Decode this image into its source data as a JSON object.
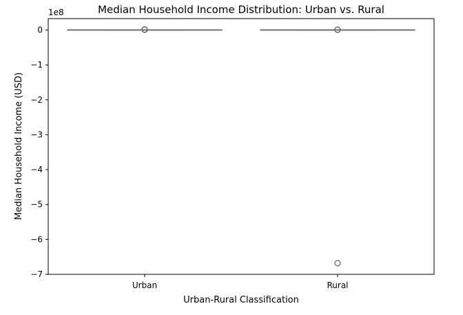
{
  "chart_data": {
    "type": "box",
    "title": "Median Household Income Distribution: Urban vs. Rural",
    "xlabel": "Urban-Rural Classification",
    "ylabel": "Median Household Income (USD)",
    "y_offset_label": "1e8",
    "ylim": [
      -7,
      0.3
    ],
    "y_unit_scale": 100000000,
    "y_ticks": [
      0,
      -1,
      -2,
      -3,
      -4,
      -5,
      -6,
      -7
    ],
    "y_tick_labels": [
      "0",
      "−1",
      "−2",
      "−3",
      "−4",
      "−5",
      "−6",
      "−7"
    ],
    "categories": [
      "Urban",
      "Rural"
    ],
    "series": [
      {
        "category": "Urban",
        "q1": 0.0,
        "median": 0.0,
        "q3": 0.0,
        "whisker_low": 0.0,
        "whisker_high": 0.0,
        "outliers": [
          0.005,
          0.01,
          0.015
        ]
      },
      {
        "category": "Rural",
        "q1": 0.0,
        "median": 0.0,
        "q3": 0.0,
        "whisker_low": 0.0,
        "whisker_high": 0.0,
        "outliers": [
          0.005,
          0.01,
          -6.68
        ]
      }
    ],
    "grid": false,
    "legend": "none",
    "box_color": "#4c72b0",
    "line_color": "#6b6b6b"
  }
}
